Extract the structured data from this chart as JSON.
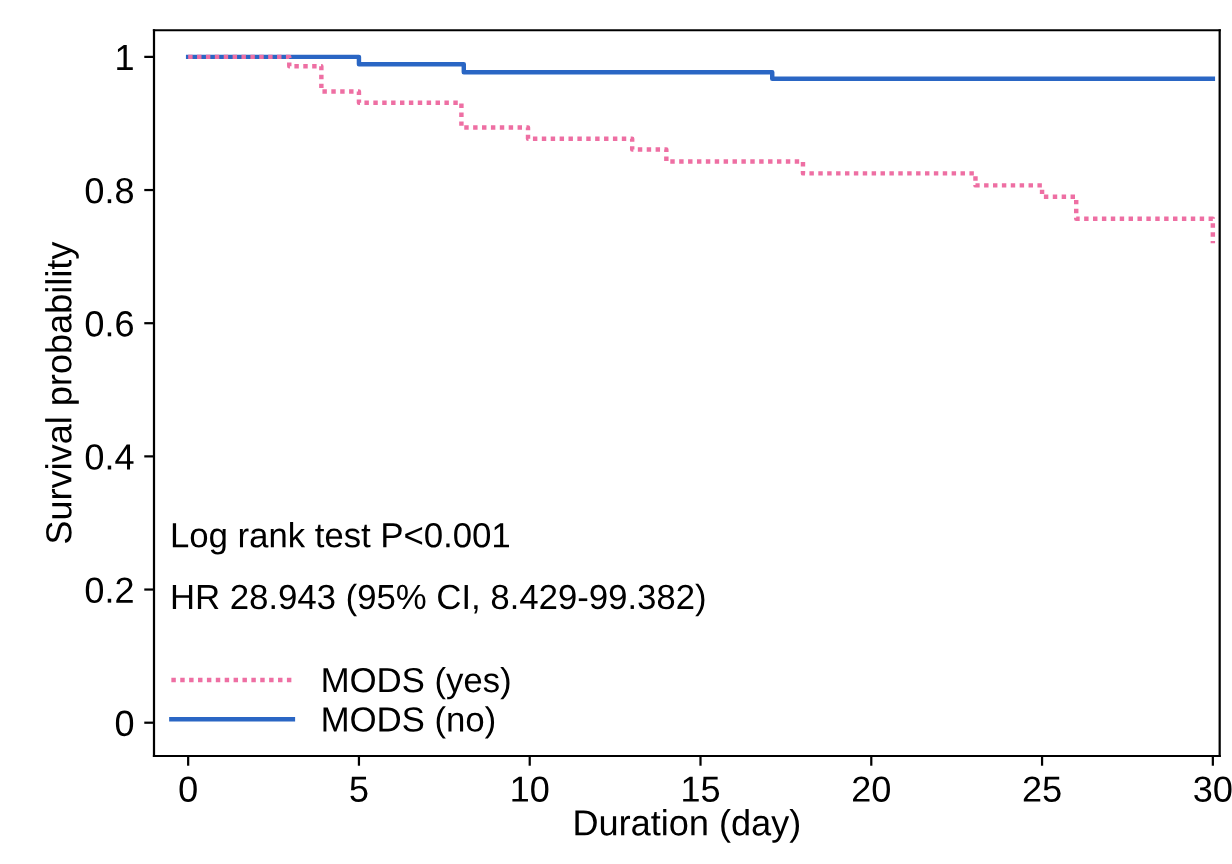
{
  "chart_data": {
    "type": "step",
    "xlabel": "Duration (day)",
    "ylabel": "Survival probability",
    "xlim": [
      -1,
      30.2
    ],
    "ylim": [
      -0.05,
      1.04
    ],
    "xticks": [
      0,
      5,
      10,
      15,
      20,
      25,
      30
    ],
    "yticks": [
      0,
      0.2,
      0.4,
      0.6,
      0.8,
      1
    ],
    "annotations": [
      "Log rank test P<0.001",
      "HR 28.943 (95% CI, 8.429-99.382)"
    ],
    "grid": false,
    "legend": "bottom left",
    "series": [
      {
        "name": "MODS (yes)",
        "color": "#ee6fa3",
        "line_style": "dotted",
        "x": [
          0,
          2.96,
          3.9,
          5.0,
          8.0,
          9.95,
          13.0,
          14.0,
          18.0,
          23.05,
          25.0,
          26.0,
          30
        ],
        "values": [
          1,
          0.986,
          0.948,
          0.931,
          0.894,
          0.877,
          0.861,
          0.843,
          0.825,
          0.807,
          0.79,
          0.757,
          0.72
        ]
      },
      {
        "name": "MODS (no)",
        "color": "#2a66c4",
        "line_style": "solid",
        "x": [
          0,
          5.0,
          8.07,
          17.1,
          30
        ],
        "values": [
          1,
          0.989,
          0.977,
          0.967,
          0.967
        ]
      }
    ]
  }
}
